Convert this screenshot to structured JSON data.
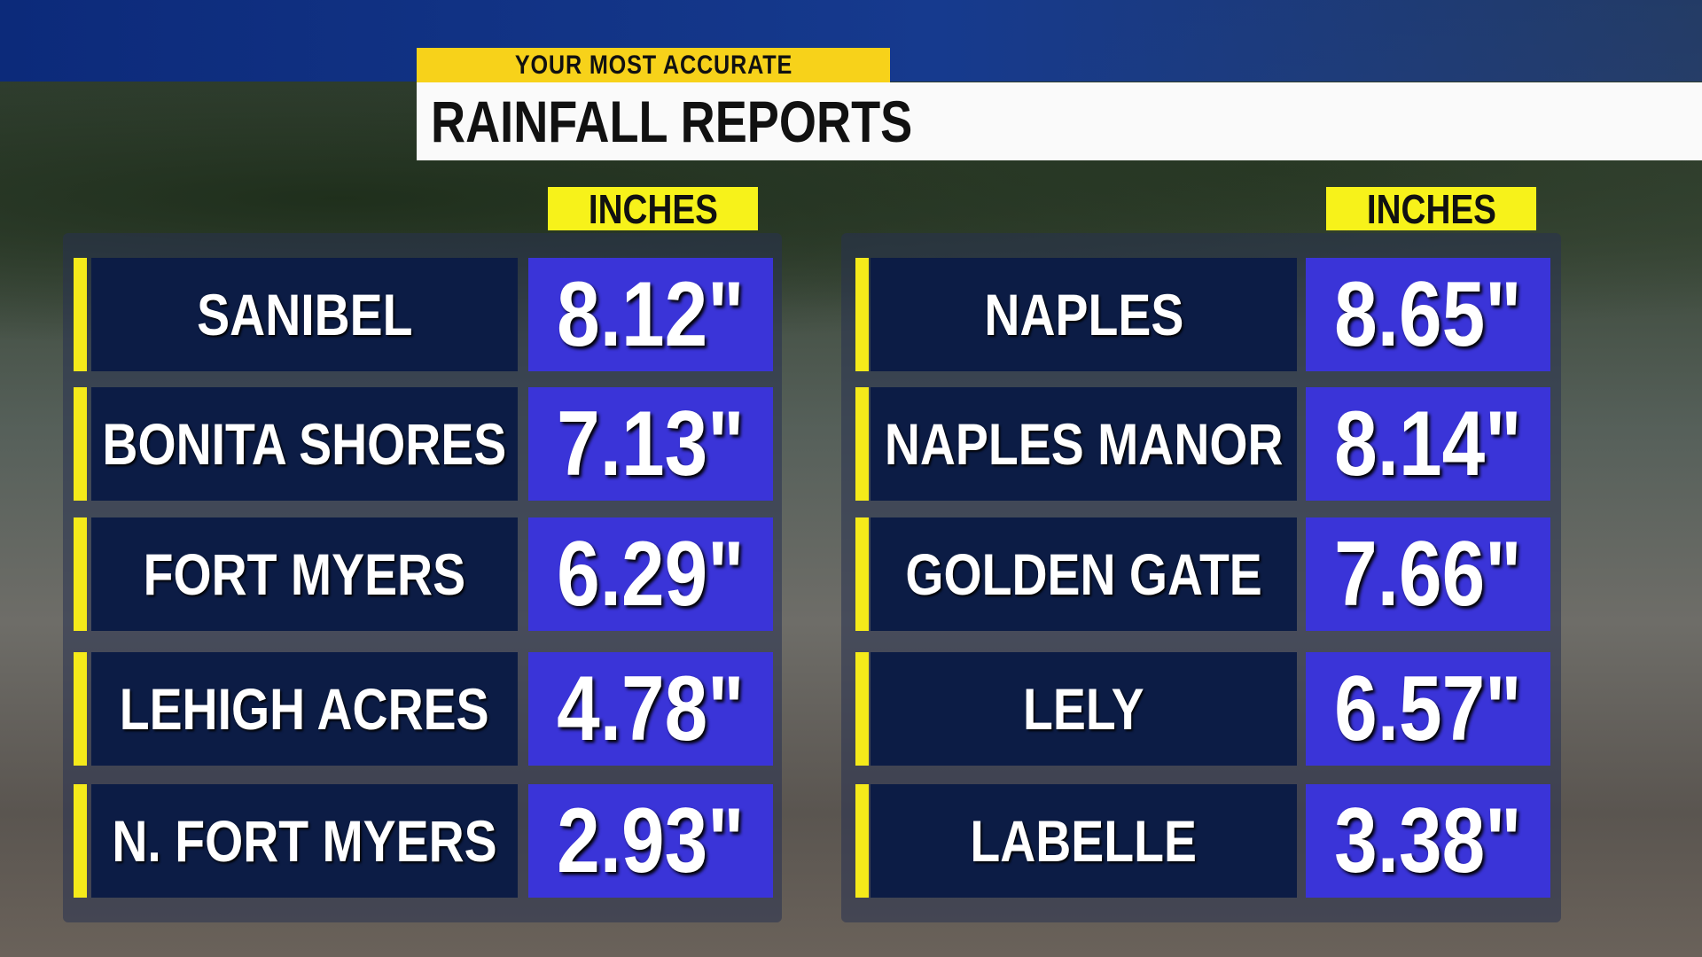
{
  "header": {
    "tag": "YOUR MOST ACCURATE",
    "title": "RAINFALL REPORTS"
  },
  "tables": [
    {
      "column_label": "INCHES",
      "rows": [
        {
          "location": "SANIBEL",
          "rainfall": "8.12\""
        },
        {
          "location": "BONITA SHORES",
          "rainfall": "7.13\""
        },
        {
          "location": "FORT MYERS",
          "rainfall": "6.29\""
        },
        {
          "location": "LEHIGH ACRES",
          "rainfall": "4.78\""
        },
        {
          "location": "N. FORT MYERS",
          "rainfall": "2.93\""
        }
      ]
    },
    {
      "column_label": "INCHES",
      "rows": [
        {
          "location": "NAPLES",
          "rainfall": "8.65\""
        },
        {
          "location": "NAPLES MANOR",
          "rainfall": "8.14\""
        },
        {
          "location": "GOLDEN GATE",
          "rainfall": "7.66\""
        },
        {
          "location": "LELY",
          "rainfall": "6.57\""
        },
        {
          "location": "LABELLE",
          "rainfall": "3.38\""
        }
      ]
    }
  ]
}
